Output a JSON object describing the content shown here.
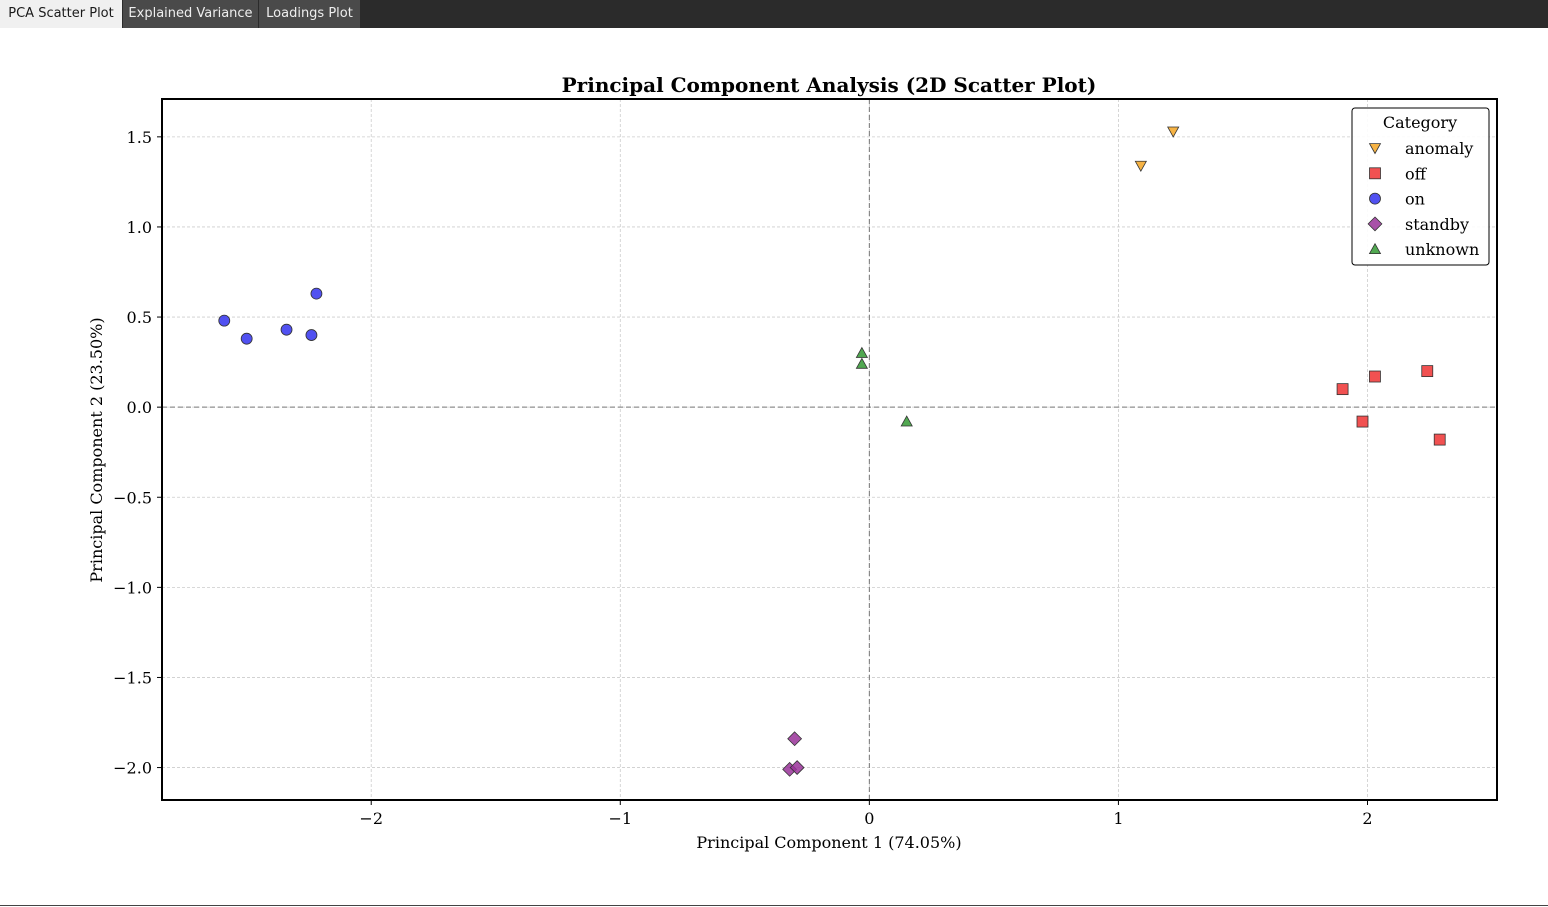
{
  "tabs": [
    {
      "label": "PCA Scatter Plot",
      "active": true
    },
    {
      "label": "Explained Variance",
      "active": false
    },
    {
      "label": "Loadings Plot",
      "active": false
    }
  ],
  "chart_data": {
    "type": "scatter",
    "title": "Principal Component Analysis (2D Scatter Plot)",
    "xlabel": "Principal Component 1 (74.05%)",
    "ylabel": "Principal Component 2 (23.50%)",
    "xlim": [
      -2.84,
      2.52
    ],
    "ylim": [
      -2.18,
      1.71
    ],
    "xticks": [
      -2,
      -1,
      0,
      1,
      2
    ],
    "xtick_labels": [
      "−2",
      "−1",
      "0",
      "1",
      "2"
    ],
    "yticks": [
      1.5,
      1.0,
      0.5,
      0.0,
      -0.5,
      -1.0,
      -1.5,
      -2.0
    ],
    "ytick_labels": [
      "1.5",
      "1.0",
      "0.5",
      "0.0",
      "−0.5",
      "−1.0",
      "−1.5",
      "−2.0"
    ],
    "grid": true,
    "reference_lines": {
      "x": 0,
      "y": 0
    },
    "legend_title": "Category",
    "legend_position": "top-right",
    "series": [
      {
        "name": "anomaly",
        "marker": "triangle-down",
        "color": "#f5a623",
        "points": [
          [
            1.22,
            1.53
          ],
          [
            1.09,
            1.34
          ]
        ]
      },
      {
        "name": "off",
        "marker": "square",
        "color": "#ee3333",
        "points": [
          [
            1.9,
            0.1
          ],
          [
            2.03,
            0.17
          ],
          [
            2.24,
            0.2
          ],
          [
            1.98,
            -0.08
          ],
          [
            2.29,
            -0.18
          ]
        ]
      },
      {
        "name": "on",
        "marker": "circle",
        "color": "#3333ee",
        "points": [
          [
            -2.59,
            0.48
          ],
          [
            -2.5,
            0.38
          ],
          [
            -2.34,
            0.43
          ],
          [
            -2.24,
            0.4
          ],
          [
            -2.22,
            0.63
          ]
        ]
      },
      {
        "name": "standby",
        "marker": "diamond",
        "color": "#993399",
        "points": [
          [
            -0.3,
            -1.84
          ],
          [
            -0.32,
            -2.01
          ],
          [
            -0.29,
            -2.0
          ]
        ]
      },
      {
        "name": "unknown",
        "marker": "triangle-up",
        "color": "#339933",
        "points": [
          [
            -0.03,
            0.3
          ],
          [
            -0.03,
            0.24
          ],
          [
            0.15,
            -0.08
          ]
        ]
      }
    ]
  }
}
